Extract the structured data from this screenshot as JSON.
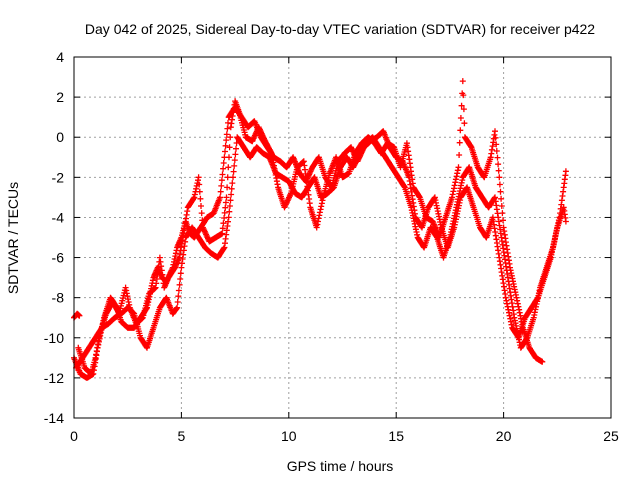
{
  "chart_data": {
    "type": "scatter",
    "title": "Day 042 of 2025, Sidereal Day-to-day VTEC variation (SDTVAR) for receiver p422",
    "xlabel": "GPS time / hours",
    "ylabel": "SDTVAR / TECUs",
    "xlim": [
      0,
      25
    ],
    "ylim": [
      -14,
      4
    ],
    "x_ticks": [
      0,
      5,
      10,
      15,
      20,
      25
    ],
    "y_ticks": [
      -14,
      -12,
      -10,
      -8,
      -6,
      -4,
      -2,
      0,
      2,
      4
    ],
    "grid": true,
    "marker": "plus",
    "series": [
      {
        "name": "p422",
        "color": "#ff0000",
        "tracks": [
          [
            [
              0.0,
              -9.0
            ],
            [
              0.15,
              -8.8
            ],
            [
              0.25,
              -8.9
            ]
          ],
          [
            [
              0.0,
              -11.0
            ],
            [
              0.3,
              -11.8
            ],
            [
              0.6,
              -12.0
            ],
            [
              0.9,
              -11.8
            ],
            [
              1.1,
              -10.5
            ],
            [
              1.4,
              -9.0
            ],
            [
              1.7,
              -8.0
            ],
            [
              2.0,
              -8.5
            ],
            [
              2.2,
              -9.2
            ],
            [
              2.5,
              -9.5
            ],
            [
              2.8,
              -9.5
            ],
            [
              3.1,
              -9.0
            ],
            [
              3.4,
              -8.5
            ],
            [
              3.7,
              -7.0
            ],
            [
              3.9,
              -6.5
            ],
            [
              4.1,
              -7.0
            ],
            [
              4.3,
              -7.2
            ],
            [
              4.6,
              -6.5
            ],
            [
              4.8,
              -5.5
            ],
            [
              5.0,
              -5.0
            ],
            [
              5.2,
              -4.2
            ],
            [
              5.4,
              -4.8
            ],
            [
              5.6,
              -5.0
            ],
            [
              5.9,
              -4.5
            ],
            [
              6.2,
              -4.0
            ],
            [
              6.5,
              -3.8
            ],
            [
              6.8,
              -3.0
            ],
            [
              7.0,
              -1.0
            ],
            [
              7.2,
              1.0
            ],
            [
              7.5,
              1.5
            ],
            [
              7.8,
              1.0
            ],
            [
              8.1,
              0.5
            ],
            [
              8.4,
              0.8
            ],
            [
              8.7,
              0.0
            ],
            [
              9.0,
              -0.5
            ],
            [
              9.3,
              -1.0
            ],
            [
              9.6,
              -1.2
            ],
            [
              9.9,
              -1.5
            ],
            [
              10.2,
              -1.0
            ],
            [
              10.5,
              -1.8
            ],
            [
              10.8,
              -2.2
            ],
            [
              11.1,
              -1.5
            ],
            [
              11.4,
              -1.0
            ],
            [
              11.7,
              -2.0
            ],
            [
              12.0,
              -2.5
            ],
            [
              12.3,
              -1.2
            ],
            [
              12.6,
              -0.8
            ],
            [
              12.9,
              -0.5
            ],
            [
              13.2,
              -1.2
            ],
            [
              13.5,
              -0.5
            ],
            [
              13.8,
              -0.2
            ],
            [
              14.1,
              0.0
            ],
            [
              14.4,
              0.3
            ],
            [
              14.7,
              -0.5
            ],
            [
              15.0,
              -1.0
            ],
            [
              15.3,
              -1.2
            ],
            [
              15.6,
              -2.0
            ],
            [
              15.9,
              -4.0
            ],
            [
              16.2,
              -4.5
            ],
            [
              16.5,
              -3.5
            ],
            [
              16.8,
              -3.0
            ],
            [
              17.1,
              -4.5
            ],
            [
              17.4,
              -5.5
            ],
            [
              17.7,
              -4.5
            ],
            [
              18.0,
              -3.0
            ],
            [
              18.3,
              -2.5
            ],
            [
              18.6,
              -3.5
            ],
            [
              18.9,
              -4.5
            ],
            [
              19.2,
              -5.0
            ],
            [
              19.5,
              -4.0
            ],
            [
              19.8,
              -6.0
            ],
            [
              20.1,
              -8.0
            ],
            [
              20.4,
              -9.5
            ],
            [
              20.7,
              -10.0
            ],
            [
              21.0,
              -9.0
            ],
            [
              21.3,
              -8.5
            ],
            [
              21.6,
              -8.0
            ],
            [
              21.9,
              -7.0
            ],
            [
              22.2,
              -6.0
            ],
            [
              22.5,
              -4.5
            ],
            [
              22.8,
              -3.5
            ],
            [
              22.9,
              -4.2
            ]
          ],
          [
            [
              0.1,
              -11.5
            ],
            [
              0.4,
              -11.0
            ],
            [
              0.7,
              -10.5
            ],
            [
              1.0,
              -10.0
            ],
            [
              1.3,
              -9.5
            ],
            [
              1.6,
              -9.3
            ],
            [
              1.9,
              -9.0
            ],
            [
              2.2,
              -8.8
            ],
            [
              2.5,
              -8.5
            ],
            [
              2.8,
              -8.8
            ],
            [
              3.1,
              -10.0
            ],
            [
              3.4,
              -10.5
            ],
            [
              3.7,
              -9.5
            ],
            [
              4.0,
              -8.5
            ],
            [
              4.3,
              -8.0
            ],
            [
              4.6,
              -8.8
            ],
            [
              4.8,
              -8.5
            ],
            [
              5.0,
              -6.5
            ],
            [
              5.2,
              -5.0
            ],
            [
              5.5,
              -4.5
            ],
            [
              5.8,
              -5.0
            ],
            [
              6.1,
              -5.5
            ],
            [
              6.4,
              -5.8
            ],
            [
              6.7,
              -6.0
            ],
            [
              7.0,
              -5.5
            ],
            [
              7.2,
              -4.0
            ],
            [
              7.4,
              -2.0
            ],
            [
              7.6,
              0.0
            ],
            [
              7.9,
              -0.5
            ],
            [
              8.2,
              -1.0
            ],
            [
              8.5,
              -0.5
            ],
            [
              8.8,
              -0.8
            ],
            [
              9.1,
              -1.0
            ],
            [
              9.4,
              -1.8
            ],
            [
              9.7,
              -2.0
            ],
            [
              10.0,
              -2.2
            ],
            [
              10.3,
              -2.8
            ],
            [
              10.6,
              -3.0
            ],
            [
              10.9,
              -2.5
            ],
            [
              11.2,
              -2.0
            ],
            [
              11.5,
              -3.0
            ],
            [
              11.8,
              -2.8
            ],
            [
              12.1,
              -2.5
            ],
            [
              12.4,
              -1.5
            ],
            [
              12.7,
              -1.0
            ],
            [
              13.0,
              -1.5
            ],
            [
              13.3,
              -0.8
            ],
            [
              13.6,
              -0.3
            ],
            [
              13.9,
              0.0
            ],
            [
              14.2,
              -0.5
            ],
            [
              14.5,
              -1.0
            ],
            [
              14.8,
              -1.5
            ],
            [
              15.1,
              -2.0
            ],
            [
              15.4,
              -2.5
            ],
            [
              15.7,
              -3.5
            ],
            [
              16.0,
              -5.0
            ],
            [
              16.3,
              -5.5
            ],
            [
              16.6,
              -4.5
            ],
            [
              16.9,
              -5.0
            ],
            [
              17.2,
              -6.0
            ],
            [
              17.5,
              -5.0
            ],
            [
              17.8,
              -3.5
            ],
            [
              18.1,
              -2.0
            ],
            [
              18.4,
              -1.5
            ],
            [
              18.7,
              -2.5
            ],
            [
              19.0,
              -3.0
            ],
            [
              19.3,
              -3.5
            ],
            [
              19.6,
              -3.0
            ],
            [
              19.9,
              -5.0
            ],
            [
              20.2,
              -7.0
            ],
            [
              20.5,
              -9.0
            ],
            [
              20.8,
              -10.5
            ],
            [
              21.1,
              -10.0
            ],
            [
              21.4,
              -9.0
            ],
            [
              21.7,
              -7.5
            ],
            [
              22.0,
              -6.5
            ],
            [
              22.3,
              -5.5
            ],
            [
              22.6,
              -4.0
            ],
            [
              22.8,
              -2.5
            ],
            [
              22.9,
              -1.7
            ]
          ],
          [
            [
              0.2,
              -10.5
            ],
            [
              0.5,
              -11.5
            ],
            [
              0.8,
              -11.8
            ],
            [
              1.0,
              -11.0
            ],
            [
              1.2,
              -9.8
            ],
            [
              1.5,
              -8.8
            ],
            [
              1.8,
              -8.2
            ],
            [
              2.1,
              -8.8
            ],
            [
              2.4,
              -7.5
            ],
            [
              2.6,
              -8.5
            ],
            [
              2.9,
              -9.3
            ],
            [
              3.2,
              -9.0
            ],
            [
              3.5,
              -7.8
            ],
            [
              3.8,
              -7.5
            ],
            [
              4.0,
              -6.0
            ],
            [
              4.2,
              -7.5
            ],
            [
              4.4,
              -7.0
            ],
            [
              4.7,
              -6.5
            ],
            [
              4.9,
              -6.0
            ],
            [
              5.1,
              -4.8
            ],
            [
              5.3,
              -3.5
            ],
            [
              5.6,
              -3.0
            ],
            [
              5.8,
              -2.0
            ],
            [
              6.0,
              -4.5
            ],
            [
              6.3,
              -5.2
            ],
            [
              6.6,
              -5.0
            ],
            [
              6.9,
              -4.8
            ],
            [
              7.1,
              -3.0
            ],
            [
              7.3,
              0.5
            ],
            [
              7.5,
              1.8
            ],
            [
              7.7,
              1.2
            ],
            [
              8.0,
              0.0
            ],
            [
              8.3,
              -0.2
            ],
            [
              8.6,
              0.5
            ],
            [
              8.9,
              -0.2
            ],
            [
              9.2,
              -0.8
            ],
            [
              9.5,
              -2.5
            ],
            [
              9.8,
              -3.5
            ],
            [
              10.1,
              -2.8
            ],
            [
              10.4,
              -1.5
            ],
            [
              10.7,
              -1.2
            ],
            [
              11.0,
              -3.5
            ],
            [
              11.3,
              -4.5
            ],
            [
              11.6,
              -3.0
            ],
            [
              11.9,
              -1.8
            ],
            [
              12.2,
              -1.0
            ],
            [
              12.5,
              -2.0
            ],
            [
              12.8,
              -1.8
            ],
            [
              13.1,
              -0.8
            ],
            [
              13.4,
              -0.3
            ],
            [
              13.7,
              0.0
            ],
            [
              14.0,
              -0.3
            ],
            [
              14.3,
              -0.8
            ],
            [
              14.6,
              -0.3
            ],
            [
              14.9,
              -0.5
            ],
            [
              15.2,
              -1.5
            ],
            [
              15.5,
              -0.3
            ],
            [
              15.8,
              -2.5
            ],
            [
              16.1,
              -3.0
            ],
            [
              16.4,
              -4.0
            ],
            [
              16.7,
              -4.2
            ],
            [
              17.0,
              -5.0
            ],
            [
              17.3,
              -4.0
            ],
            [
              17.6,
              -3.0
            ],
            [
              17.9,
              -1.5
            ],
            [
              18.1,
              2.8
            ],
            [
              18.2,
              0.0
            ],
            [
              18.5,
              -0.5
            ],
            [
              18.8,
              -1.5
            ],
            [
              19.1,
              -2.0
            ],
            [
              19.4,
              -1.0
            ],
            [
              19.6,
              0.3
            ],
            [
              19.8,
              -2.0
            ],
            [
              20.0,
              -4.5
            ],
            [
              20.3,
              -6.5
            ],
            [
              20.6,
              -8.0
            ],
            [
              20.9,
              -9.5
            ],
            [
              21.2,
              -10.5
            ],
            [
              21.5,
              -11.0
            ],
            [
              21.8,
              -11.2
            ]
          ]
        ]
      }
    ]
  }
}
